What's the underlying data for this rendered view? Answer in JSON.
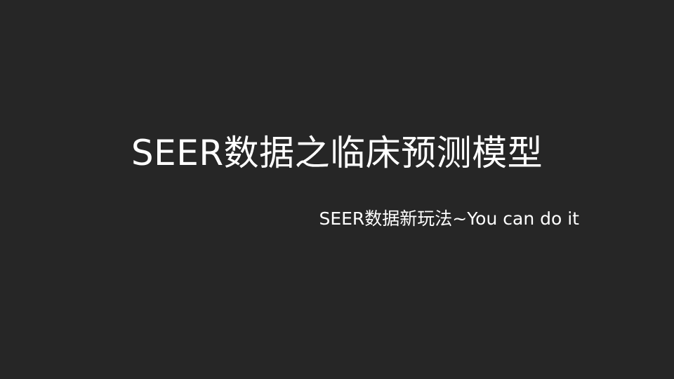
{
  "slide": {
    "title": "SEER数据之临床预测模型",
    "subtitle": "SEER数据新玩法~You can do it"
  },
  "colors": {
    "background": "#262626",
    "text": "#ffffff"
  }
}
